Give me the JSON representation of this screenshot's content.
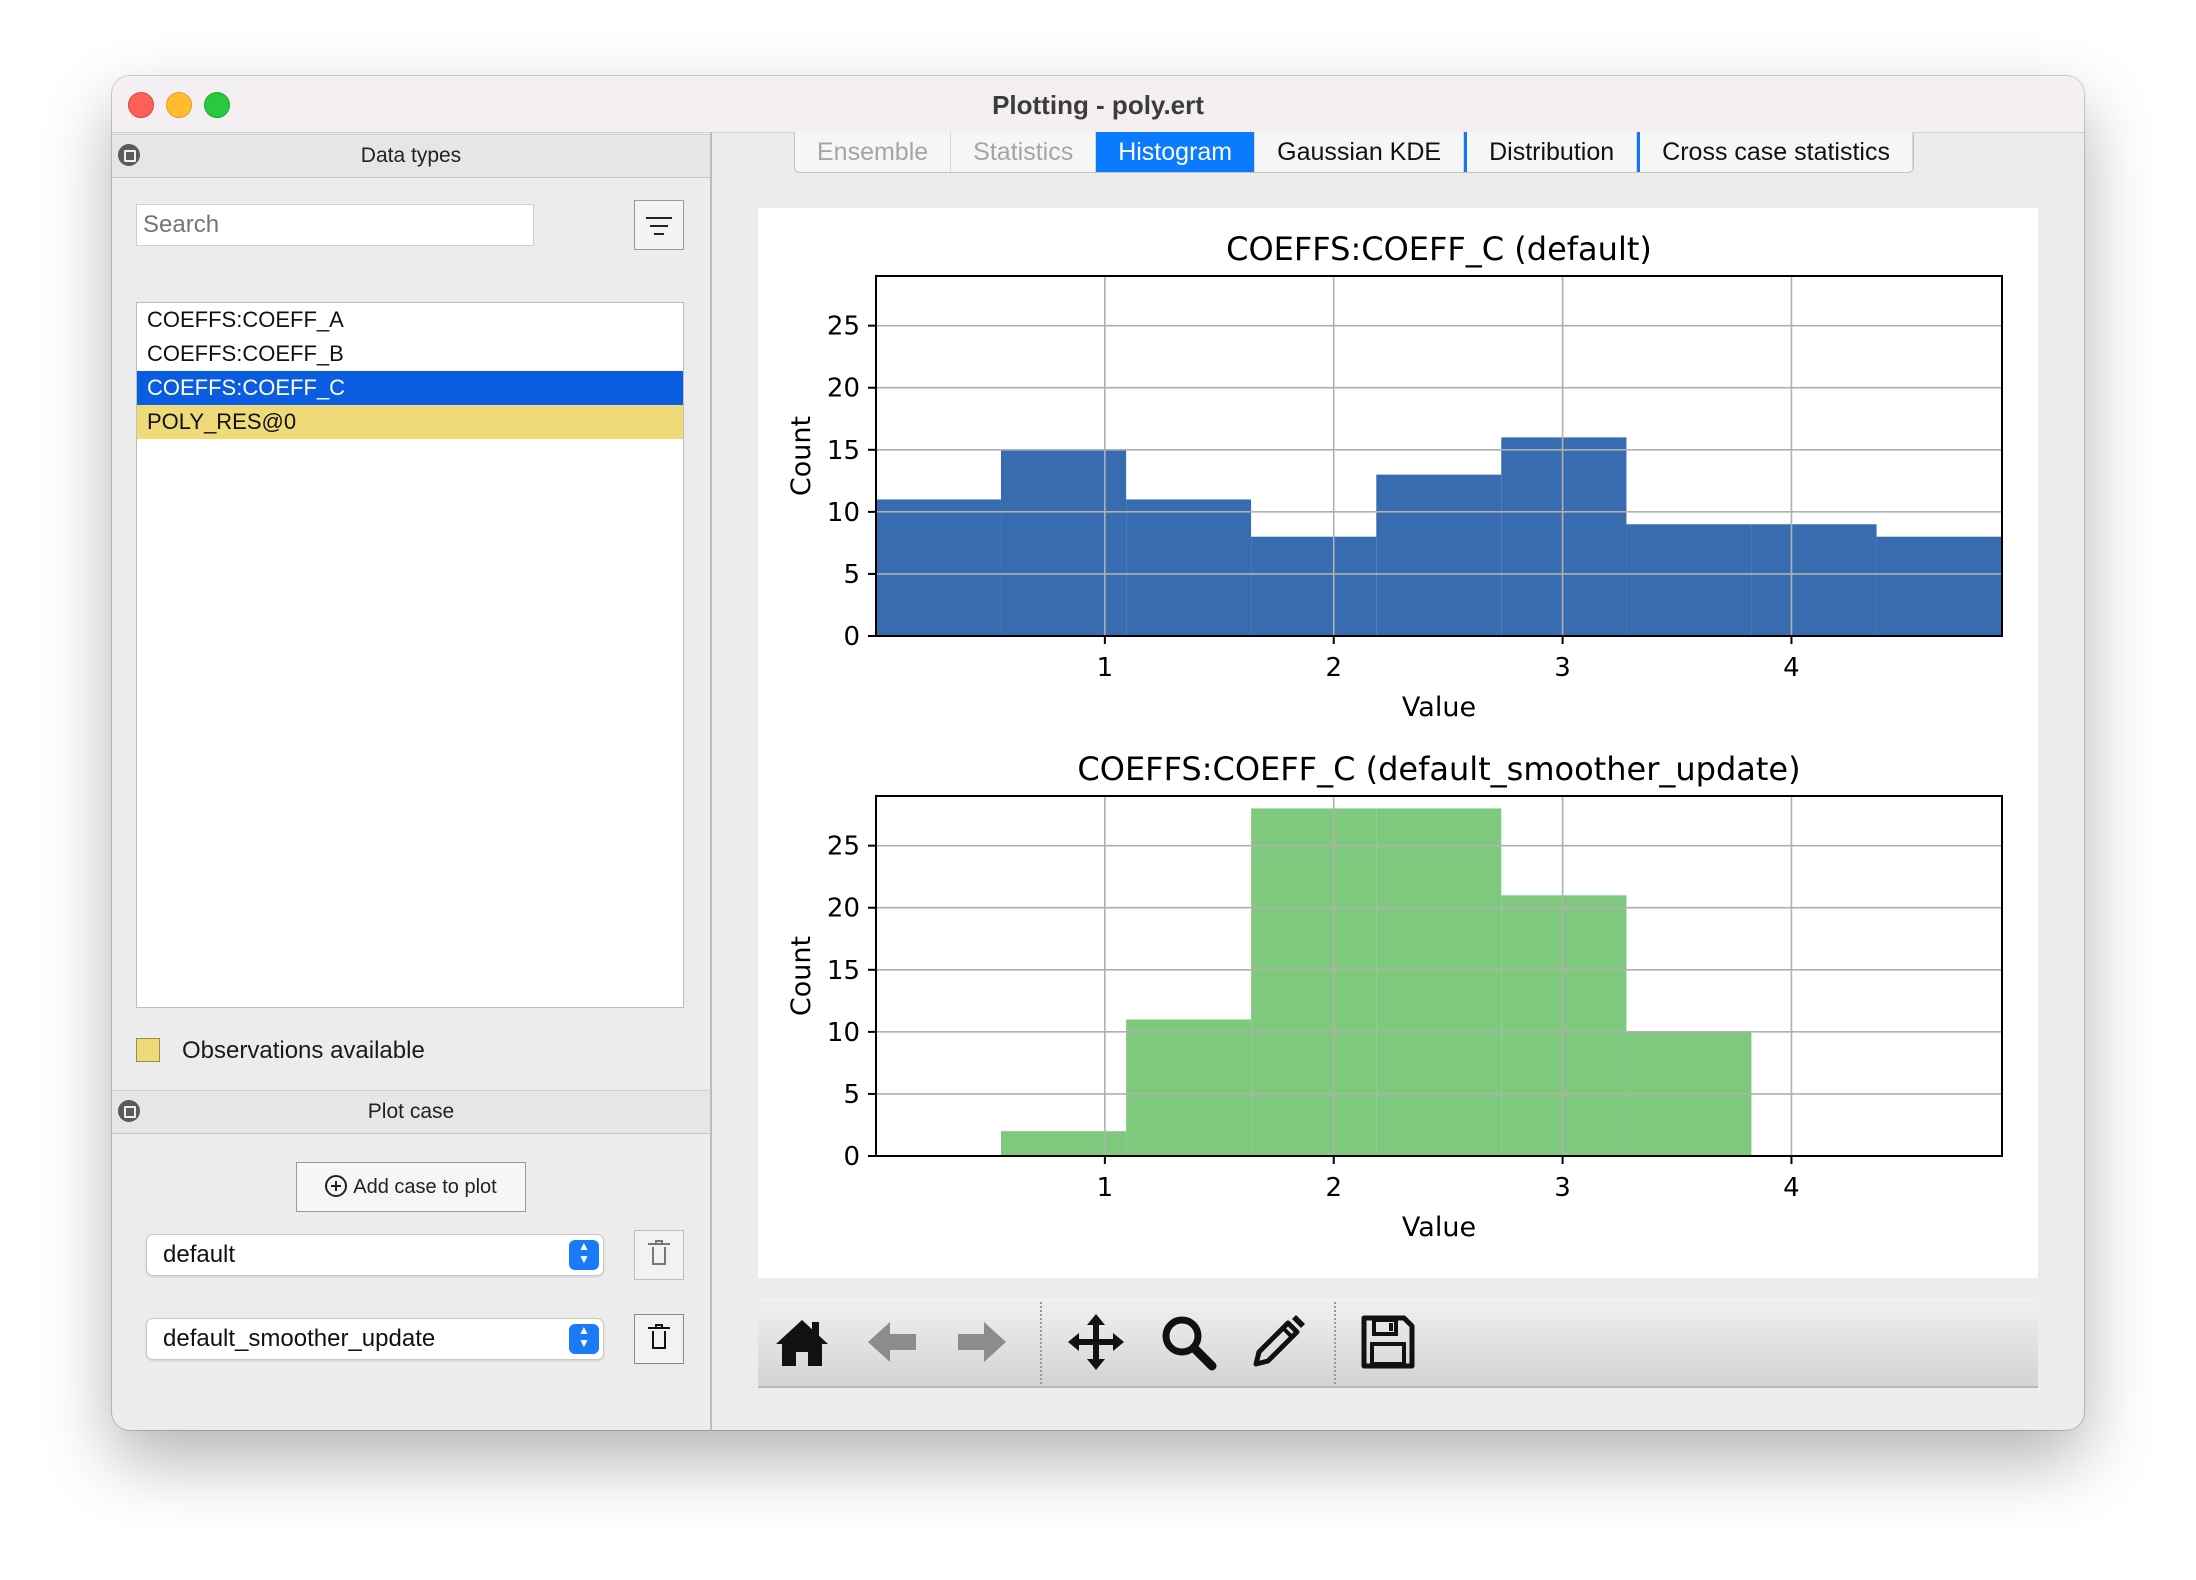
{
  "window": {
    "title": "Plotting - poly.ert"
  },
  "data_types": {
    "title": "Data types",
    "search_placeholder": "Search",
    "items": [
      {
        "label": "COEFFS:COEFF_A",
        "state": "normal"
      },
      {
        "label": "COEFFS:COEFF_B",
        "state": "normal"
      },
      {
        "label": "COEFFS:COEFF_C",
        "state": "selected"
      },
      {
        "label": "POLY_RES@0",
        "state": "observations"
      }
    ],
    "legend_label": "Observations available",
    "selected_color": "#0a5ce0",
    "observation_color": "#efda79"
  },
  "plot_case": {
    "title": "Plot case",
    "add_button_label": "Add case to plot",
    "cases": [
      "default",
      "default_smoother_update"
    ]
  },
  "tabs": [
    {
      "label": "Ensemble",
      "state": "disabled"
    },
    {
      "label": "Statistics",
      "state": "disabled"
    },
    {
      "label": "Histogram",
      "state": "active"
    },
    {
      "label": "Gaussian KDE",
      "state": "normal"
    },
    {
      "label": "Distribution",
      "state": "normal"
    },
    {
      "label": "Cross case statistics",
      "state": "normal"
    }
  ],
  "toolbar": {
    "icons": [
      "home-icon",
      "back-arrow-icon",
      "forward-arrow-icon",
      "pan-icon",
      "zoom-icon",
      "edit-icon",
      "save-icon"
    ]
  },
  "chart_data": [
    {
      "type": "bar",
      "title": "COEFFS:COEFF_C (default)",
      "xlabel": "Value",
      "ylabel": "Count",
      "color": "#386cb0",
      "xlim": [
        0.0,
        4.92
      ],
      "ylim": [
        0,
        29
      ],
      "xticks": [
        1,
        2,
        3,
        4
      ],
      "yticks": [
        0,
        5,
        10,
        15,
        20,
        25
      ],
      "grid": true,
      "bin_edges": [
        0.0,
        0.546,
        1.093,
        1.639,
        2.186,
        2.732,
        3.279,
        3.825,
        4.372,
        4.92
      ],
      "values": [
        11,
        15,
        11,
        8,
        13,
        16,
        9,
        9,
        8
      ]
    },
    {
      "type": "bar",
      "title": "COEFFS:COEFF_C (default_smoother_update)",
      "xlabel": "Value",
      "ylabel": "Count",
      "color": "#7fc97f",
      "xlim": [
        0.0,
        4.92
      ],
      "ylim": [
        0,
        29
      ],
      "xticks": [
        1,
        2,
        3,
        4
      ],
      "yticks": [
        0,
        5,
        10,
        15,
        20,
        25
      ],
      "grid": true,
      "bin_edges": [
        0.546,
        1.093,
        1.639,
        2.186,
        2.732,
        3.279,
        3.825
      ],
      "values": [
        2,
        11,
        28,
        28,
        21,
        10
      ]
    }
  ]
}
